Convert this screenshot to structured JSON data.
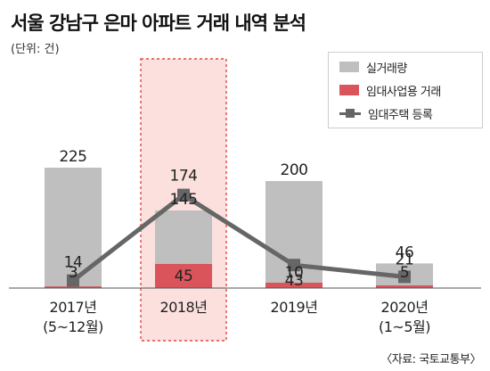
{
  "title": "서울 강남구 은마 아파트 거래 내역 분석",
  "unit": "(단위: 건)",
  "source": "〈자료: 국토교통부〉",
  "colors": {
    "actual": "#bfbfbf",
    "rental_business": "#d9555b",
    "line": "#666666",
    "highlight_fill": "#fbe0dd",
    "highlight_border": "#e24a3f"
  },
  "legend": {
    "actual": "실거래량",
    "rental_business": "임대사업용 거래",
    "rental_registration": "임대주택 등록"
  },
  "chart_data": {
    "type": "bar",
    "categories": [
      [
        "2017년",
        "(5~12월)"
      ],
      [
        "2018년"
      ],
      [
        "2019년"
      ],
      [
        "2020년",
        "(1~5월)"
      ]
    ],
    "highlight_category_index": 1,
    "ylim": [
      0,
      260
    ],
    "series": [
      {
        "name": "실거래량",
        "type": "bar",
        "values": [
          225,
          145,
          200,
          46
        ]
      },
      {
        "name": "임대사업용 거래",
        "type": "bar",
        "overlay": true,
        "values": [
          3,
          45,
          10,
          5
        ]
      },
      {
        "name": "임대주택 등록",
        "type": "line",
        "marker": "square",
        "values": [
          14,
          174,
          43,
          21
        ]
      }
    ]
  }
}
